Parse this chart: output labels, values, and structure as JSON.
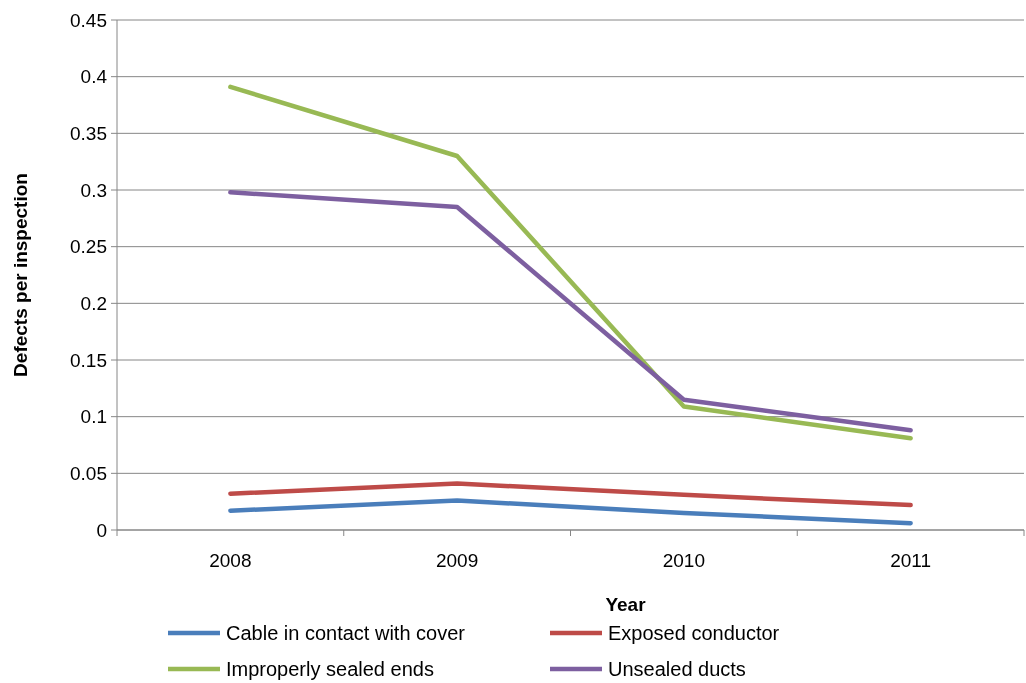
{
  "chart_data": {
    "type": "line",
    "xlabel": "Year",
    "ylabel": "Defects per inspection",
    "categories": [
      "2008",
      "2009",
      "2010",
      "2011"
    ],
    "series": [
      {
        "name": "Cable in contact with cover",
        "color": "#4a7ebb",
        "values": [
          0.017,
          0.026,
          0.015,
          0.006
        ]
      },
      {
        "name": "Exposed conductor",
        "color": "#be4b48",
        "values": [
          0.032,
          0.041,
          0.031,
          0.022
        ]
      },
      {
        "name": "Improperly sealed ends",
        "color": "#98b954",
        "values": [
          0.391,
          0.33,
          0.109,
          0.081
        ]
      },
      {
        "name": "Unsealed ducts",
        "color": "#7d5fa0",
        "values": [
          0.298,
          0.285,
          0.115,
          0.088
        ]
      }
    ],
    "ylim": [
      0,
      0.45
    ],
    "yticks": [
      0,
      0.05,
      0.1,
      0.15,
      0.2,
      0.25,
      0.3,
      0.35,
      0.4,
      0.45
    ],
    "grid": "y",
    "legend": "bottom",
    "marker": "none",
    "line_style": "solid"
  }
}
